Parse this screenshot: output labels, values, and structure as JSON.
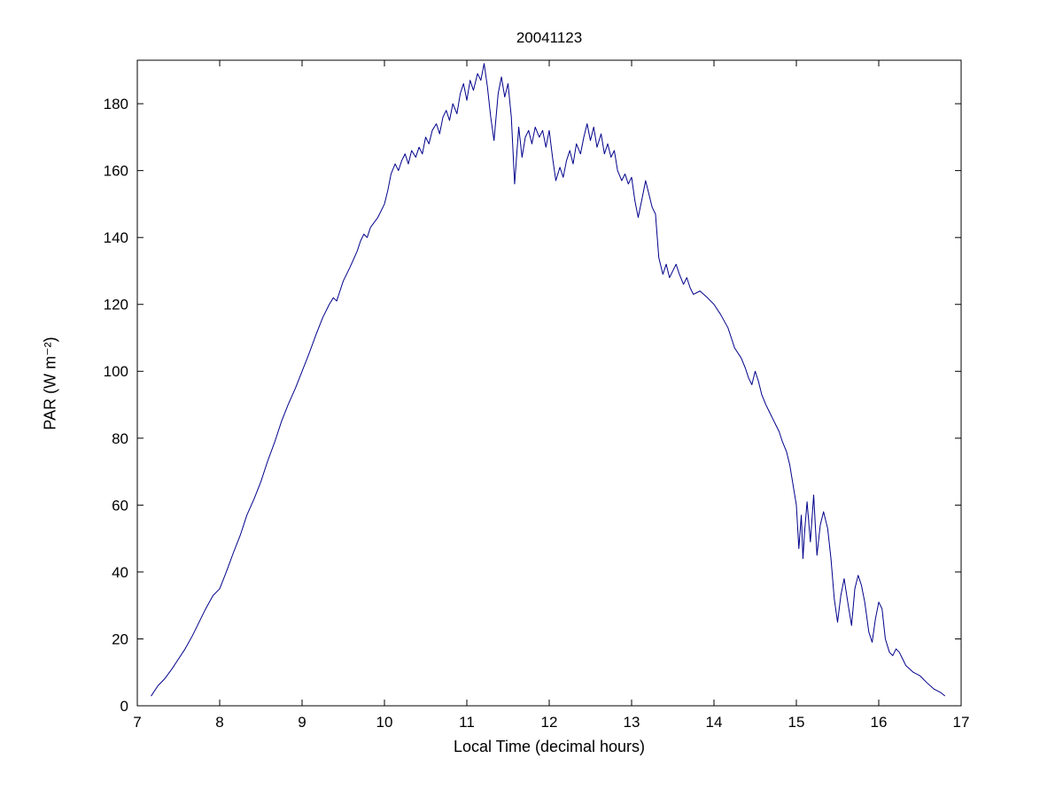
{
  "chart_data": {
    "type": "line",
    "title": "20041123",
    "xlabel": "Local Time (decimal hours)",
    "ylabel": "PAR (W m⁻²)",
    "xlim": [
      7,
      17
    ],
    "ylim": [
      0,
      193
    ],
    "xticks": [
      7,
      8,
      9,
      10,
      11,
      12,
      13,
      14,
      15,
      16,
      17
    ],
    "yticks": [
      0,
      20,
      40,
      60,
      80,
      100,
      120,
      140,
      160,
      180
    ],
    "grid": false,
    "legend": "none",
    "line_color": "#00008b",
    "axis_color": "#000000",
    "background_color": "#ffffff",
    "series": [
      {
        "name": "PAR",
        "points": [
          [
            7.17,
            3
          ],
          [
            7.25,
            6
          ],
          [
            7.33,
            8
          ],
          [
            7.42,
            11
          ],
          [
            7.5,
            14
          ],
          [
            7.58,
            17
          ],
          [
            7.67,
            21
          ],
          [
            7.75,
            25
          ],
          [
            7.83,
            29
          ],
          [
            7.92,
            33
          ],
          [
            8.0,
            35
          ],
          [
            8.08,
            40
          ],
          [
            8.17,
            46
          ],
          [
            8.25,
            51
          ],
          [
            8.33,
            57
          ],
          [
            8.42,
            62
          ],
          [
            8.5,
            67
          ],
          [
            8.58,
            73
          ],
          [
            8.67,
            79
          ],
          [
            8.75,
            85
          ],
          [
            8.83,
            90
          ],
          [
            8.92,
            95
          ],
          [
            9.0,
            100
          ],
          [
            9.08,
            105
          ],
          [
            9.17,
            111
          ],
          [
            9.25,
            116
          ],
          [
            9.33,
            120
          ],
          [
            9.38,
            122
          ],
          [
            9.42,
            121
          ],
          [
            9.46,
            124
          ],
          [
            9.5,
            127
          ],
          [
            9.58,
            131
          ],
          [
            9.67,
            136
          ],
          [
            9.71,
            139
          ],
          [
            9.75,
            141
          ],
          [
            9.79,
            140
          ],
          [
            9.83,
            143
          ],
          [
            9.92,
            146
          ],
          [
            10.0,
            150
          ],
          [
            10.04,
            154
          ],
          [
            10.08,
            159
          ],
          [
            10.13,
            162
          ],
          [
            10.17,
            160
          ],
          [
            10.21,
            163
          ],
          [
            10.25,
            165
          ],
          [
            10.29,
            162
          ],
          [
            10.33,
            166
          ],
          [
            10.38,
            164
          ],
          [
            10.42,
            167
          ],
          [
            10.46,
            165
          ],
          [
            10.5,
            170
          ],
          [
            10.54,
            168
          ],
          [
            10.58,
            172
          ],
          [
            10.63,
            174
          ],
          [
            10.67,
            171
          ],
          [
            10.71,
            176
          ],
          [
            10.75,
            178
          ],
          [
            10.79,
            175
          ],
          [
            10.83,
            180
          ],
          [
            10.88,
            177
          ],
          [
            10.92,
            183
          ],
          [
            10.96,
            186
          ],
          [
            11.0,
            181
          ],
          [
            11.04,
            187
          ],
          [
            11.08,
            184
          ],
          [
            11.13,
            189
          ],
          [
            11.17,
            187
          ],
          [
            11.21,
            192
          ],
          [
            11.25,
            185
          ],
          [
            11.29,
            176
          ],
          [
            11.33,
            169
          ],
          [
            11.38,
            183
          ],
          [
            11.42,
            188
          ],
          [
            11.46,
            182
          ],
          [
            11.5,
            186
          ],
          [
            11.54,
            176
          ],
          [
            11.58,
            156
          ],
          [
            11.63,
            173
          ],
          [
            11.67,
            164
          ],
          [
            11.71,
            170
          ],
          [
            11.75,
            172
          ],
          [
            11.79,
            168
          ],
          [
            11.83,
            173
          ],
          [
            11.88,
            170
          ],
          [
            11.92,
            172
          ],
          [
            11.96,
            167
          ],
          [
            12.0,
            172
          ],
          [
            12.04,
            164
          ],
          [
            12.08,
            157
          ],
          [
            12.13,
            161
          ],
          [
            12.17,
            158
          ],
          [
            12.21,
            163
          ],
          [
            12.25,
            166
          ],
          [
            12.29,
            162
          ],
          [
            12.33,
            168
          ],
          [
            12.38,
            165
          ],
          [
            12.42,
            170
          ],
          [
            12.46,
            174
          ],
          [
            12.5,
            169
          ],
          [
            12.54,
            173
          ],
          [
            12.58,
            167
          ],
          [
            12.63,
            171
          ],
          [
            12.67,
            165
          ],
          [
            12.71,
            168
          ],
          [
            12.75,
            164
          ],
          [
            12.79,
            166
          ],
          [
            12.83,
            160
          ],
          [
            12.88,
            157
          ],
          [
            12.92,
            159
          ],
          [
            12.96,
            156
          ],
          [
            13.0,
            158
          ],
          [
            13.04,
            151
          ],
          [
            13.08,
            146
          ],
          [
            13.13,
            152
          ],
          [
            13.17,
            157
          ],
          [
            13.21,
            153
          ],
          [
            13.25,
            149
          ],
          [
            13.29,
            147
          ],
          [
            13.33,
            134
          ],
          [
            13.38,
            129
          ],
          [
            13.42,
            132
          ],
          [
            13.46,
            128
          ],
          [
            13.5,
            130
          ],
          [
            13.54,
            132
          ],
          [
            13.58,
            129
          ],
          [
            13.63,
            126
          ],
          [
            13.67,
            128
          ],
          [
            13.71,
            125
          ],
          [
            13.75,
            123
          ],
          [
            13.83,
            124
          ],
          [
            13.92,
            122
          ],
          [
            14.0,
            120
          ],
          [
            14.08,
            117
          ],
          [
            14.17,
            113
          ],
          [
            14.21,
            110
          ],
          [
            14.25,
            107
          ],
          [
            14.33,
            104
          ],
          [
            14.38,
            101
          ],
          [
            14.42,
            98
          ],
          [
            14.46,
            96
          ],
          [
            14.5,
            100
          ],
          [
            14.54,
            97
          ],
          [
            14.58,
            93
          ],
          [
            14.63,
            90
          ],
          [
            14.67,
            88
          ],
          [
            14.71,
            86
          ],
          [
            14.75,
            84
          ],
          [
            14.79,
            82
          ],
          [
            14.83,
            79
          ],
          [
            14.88,
            76
          ],
          [
            14.92,
            72
          ],
          [
            14.96,
            66
          ],
          [
            15.0,
            60
          ],
          [
            15.03,
            47
          ],
          [
            15.06,
            57
          ],
          [
            15.08,
            44
          ],
          [
            15.1,
            52
          ],
          [
            15.13,
            61
          ],
          [
            15.17,
            49
          ],
          [
            15.21,
            63
          ],
          [
            15.25,
            45
          ],
          [
            15.29,
            54
          ],
          [
            15.33,
            58
          ],
          [
            15.38,
            53
          ],
          [
            15.42,
            44
          ],
          [
            15.46,
            32
          ],
          [
            15.5,
            25
          ],
          [
            15.54,
            33
          ],
          [
            15.58,
            38
          ],
          [
            15.63,
            30
          ],
          [
            15.67,
            24
          ],
          [
            15.71,
            35
          ],
          [
            15.75,
            39
          ],
          [
            15.79,
            36
          ],
          [
            15.83,
            31
          ],
          [
            15.88,
            22
          ],
          [
            15.92,
            19
          ],
          [
            15.96,
            26
          ],
          [
            16.0,
            31
          ],
          [
            16.04,
            29
          ],
          [
            16.08,
            20
          ],
          [
            16.13,
            16
          ],
          [
            16.17,
            15
          ],
          [
            16.21,
            17
          ],
          [
            16.25,
            16
          ],
          [
            16.29,
            14
          ],
          [
            16.33,
            12
          ],
          [
            16.42,
            10
          ],
          [
            16.5,
            9
          ],
          [
            16.58,
            7
          ],
          [
            16.67,
            5
          ],
          [
            16.75,
            4
          ],
          [
            16.8,
            3
          ]
        ]
      }
    ]
  }
}
